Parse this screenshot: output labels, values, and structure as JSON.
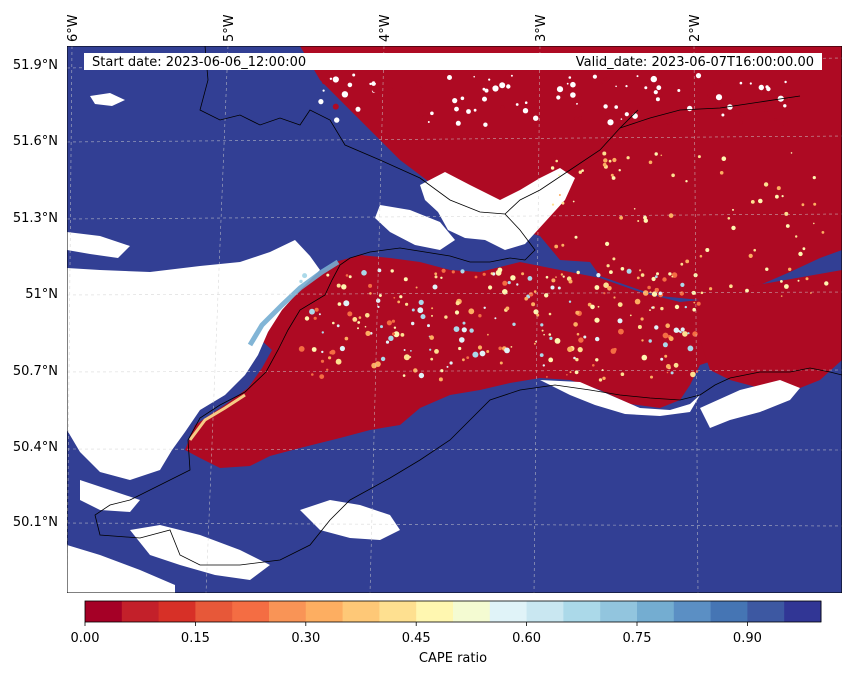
{
  "header": {
    "start_date": "Start date: 2023-06-06_12:00:00",
    "valid_date": "Valid_date: 2023-06-07T16:00:00.00"
  },
  "axes": {
    "lon_labels": [
      "6°W",
      "5°W",
      "4°W",
      "3°W",
      "2°W"
    ],
    "lat_labels": [
      "51.9°N",
      "51.6°N",
      "51.3°N",
      "51°N",
      "50.7°N",
      "50.4°N",
      "50.1°N"
    ]
  },
  "colorbar": {
    "label": "CAPE ratio",
    "ticks": [
      "0.00",
      "0.15",
      "0.30",
      "0.45",
      "0.60",
      "0.75",
      "0.90"
    ],
    "colors": [
      "#a50026",
      "#c3202a",
      "#d73027",
      "#e75839",
      "#f46d43",
      "#f99456",
      "#fdae61",
      "#fec877",
      "#fee090",
      "#fff7b0",
      "#f4fbd2",
      "#e0f3f8",
      "#c9e7f1",
      "#abd9e9",
      "#92c5de",
      "#74add1",
      "#5b8fc4",
      "#4575b4",
      "#3d58a2",
      "#313695"
    ]
  },
  "map": {
    "ocean_color": "#323f94",
    "land_high_color": "#ae0a23",
    "nodata_color": "#ffffff"
  }
}
